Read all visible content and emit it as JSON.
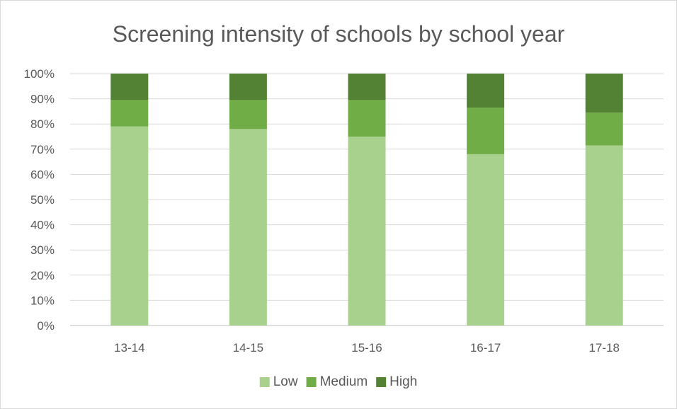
{
  "chart_data": {
    "type": "bar",
    "stacked": true,
    "title": "Screening intensity of schools by school year",
    "xlabel": "",
    "ylabel": "",
    "categories": [
      "13-14",
      "14-15",
      "15-16",
      "16-17",
      "17-18"
    ],
    "series": [
      {
        "name": "Low",
        "values": [
          79,
          78,
          75,
          68,
          71.5
        ],
        "color": "#a9d18e"
      },
      {
        "name": "Medium",
        "values": [
          10.5,
          11.5,
          14.5,
          18.5,
          13
        ],
        "color": "#70ad47"
      },
      {
        "name": "High",
        "values": [
          10.5,
          10.5,
          10.5,
          13.5,
          15.5
        ],
        "color": "#548235"
      }
    ],
    "ylim": [
      0,
      100
    ],
    "yticks": [
      "0%",
      "10%",
      "20%",
      "30%",
      "40%",
      "50%",
      "60%",
      "70%",
      "80%",
      "90%",
      "100%"
    ],
    "grid": true,
    "legend_position": "bottom"
  }
}
